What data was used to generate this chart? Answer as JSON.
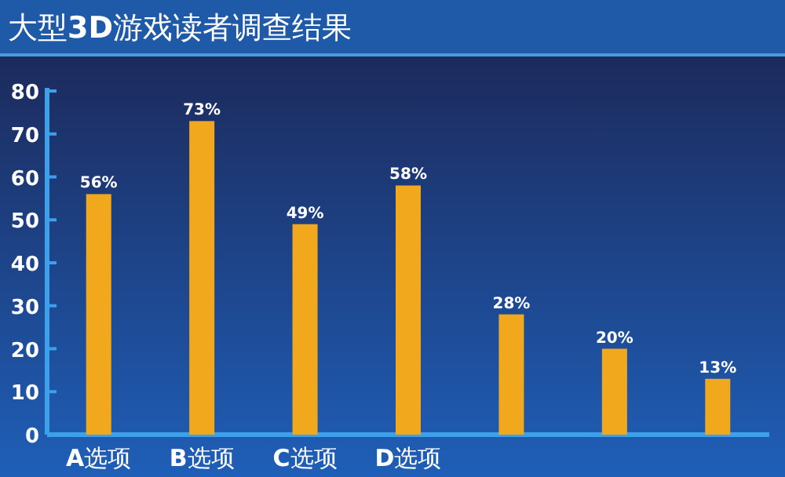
{
  "chart_data": {
    "type": "bar",
    "title": "大型**3D**游戏读者调查结果",
    "categories": [
      "A选项",
      "B选项",
      "C选项",
      "D选项",
      null,
      null,
      null
    ],
    "values": [
      56,
      73,
      49,
      58,
      28,
      20,
      13
    ],
    "value_labels": [
      "56%",
      "73%",
      "49%",
      "58%",
      "28%",
      "20%",
      "13%"
    ],
    "color": "#f2a81d",
    "ylim": [
      0,
      80
    ],
    "yticks": [
      0,
      10,
      20,
      30,
      40,
      50,
      60,
      70,
      80
    ],
    "grid": false
  }
}
